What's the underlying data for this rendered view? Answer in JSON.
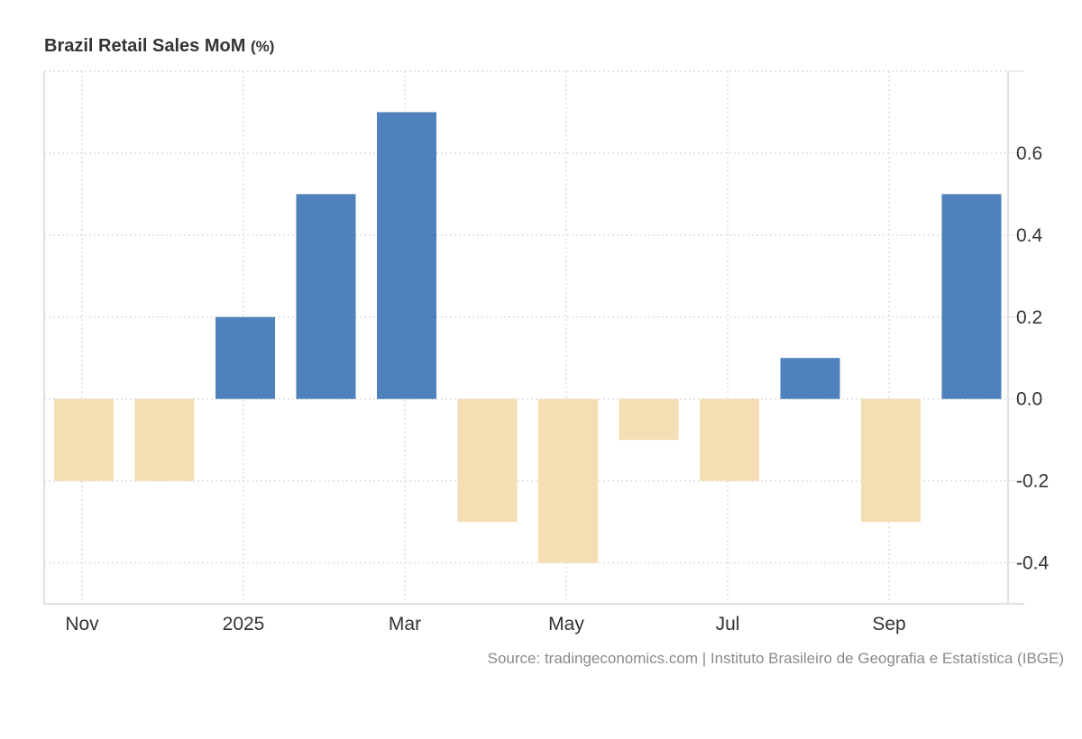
{
  "chart_data": {
    "type": "bar",
    "title": "Brazil Retail Sales MoM",
    "title_unit": "(%)",
    "categories": [
      "Nov 2024",
      "Dec 2024",
      "Jan 2025",
      "Feb 2025",
      "Mar 2025",
      "Apr 2025",
      "May 2025",
      "Jun 2025",
      "Jul 2025",
      "Aug 2025",
      "Sep 2025",
      "Oct 2025"
    ],
    "values": [
      -0.2,
      -0.2,
      0.2,
      0.5,
      0.7,
      -0.3,
      -0.4,
      -0.1,
      -0.2,
      0.1,
      -0.3,
      0.5
    ],
    "x_tick_labels": [
      {
        "label": "Nov",
        "index": 0
      },
      {
        "label": "2025",
        "index": 2
      },
      {
        "label": "Mar",
        "index": 4
      },
      {
        "label": "May",
        "index": 6
      },
      {
        "label": "Jul",
        "index": 8
      },
      {
        "label": "Sep",
        "index": 10
      }
    ],
    "y_ticks": [
      -0.4,
      -0.2,
      0.0,
      0.2,
      0.4,
      0.6
    ],
    "y_tick_labels": [
      "-0.4",
      "-0.2",
      "0.0",
      "0.2",
      "0.4",
      "0.6"
    ],
    "ylim": [
      -0.5,
      0.8
    ],
    "y_axis_side": "right",
    "grid": true,
    "colors": {
      "positive": "#4f81bd",
      "negative": "#f5deb3",
      "grid": "#dddddd",
      "axis": "#e0e0e0"
    },
    "xlabel": "",
    "ylabel": ""
  },
  "source": "Source: tradingeconomics.com | Instituto Brasileiro de Geografia e Estatística (IBGE)"
}
